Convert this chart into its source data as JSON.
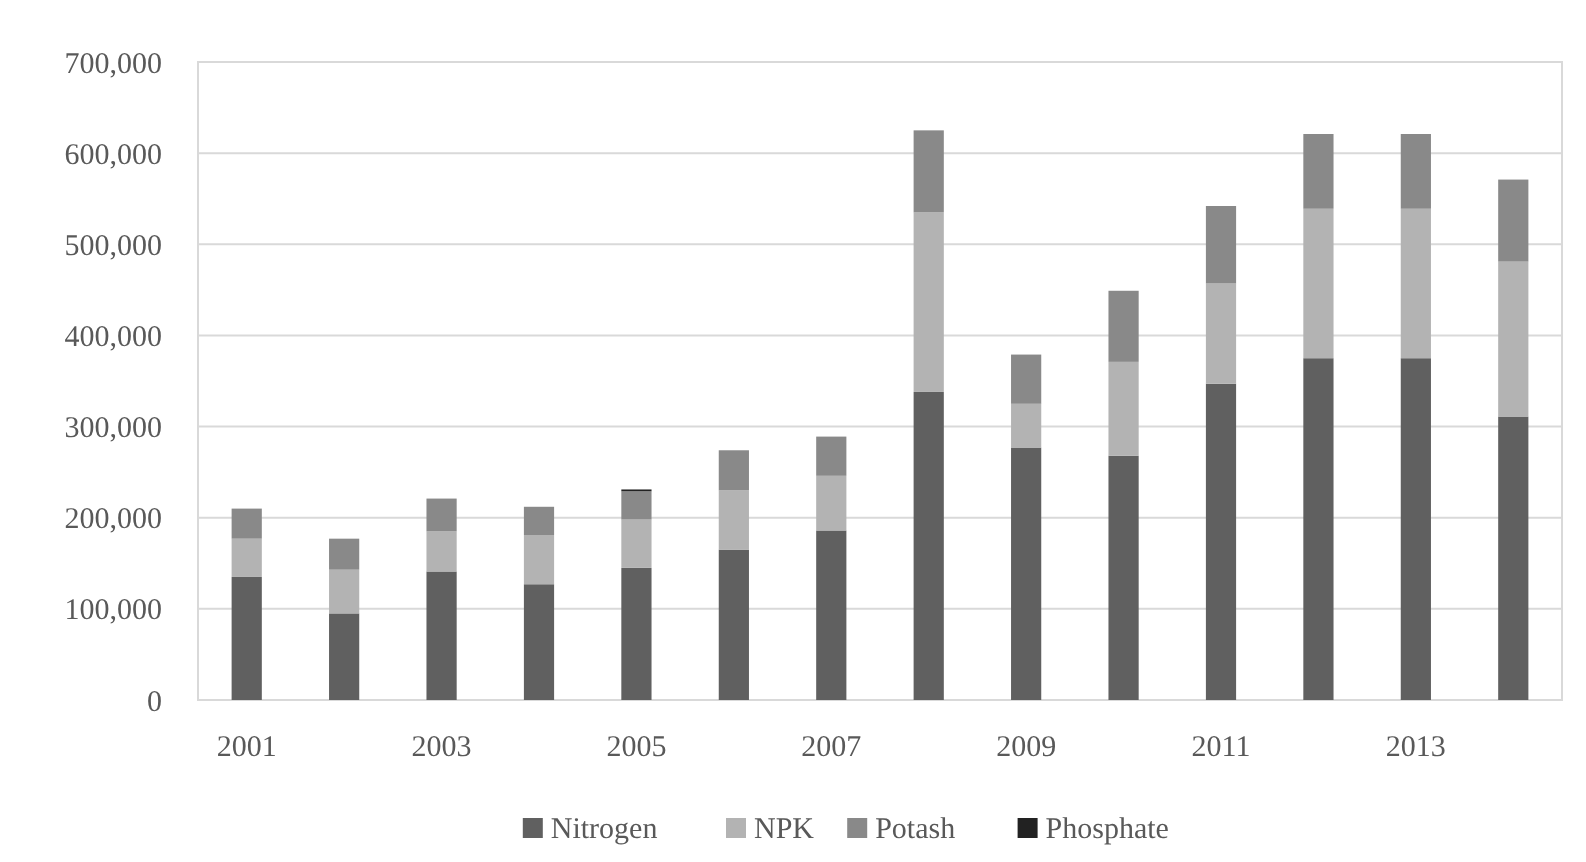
{
  "chart_data": {
    "type": "bar",
    "stacked": true,
    "categories": [
      "2001",
      null,
      "2003",
      null,
      "2005",
      null,
      "2007",
      null,
      "2009",
      null,
      "2011",
      null,
      "2013",
      null
    ],
    "series": [
      {
        "name": "Nitrogen",
        "color": "#606060",
        "values": [
          135000,
          95000,
          141000,
          127000,
          145000,
          165000,
          186000,
          338000,
          277000,
          268000,
          347000,
          375000,
          375000,
          311000
        ]
      },
      {
        "name": "NPK",
        "color": "#b3b3b3",
        "values": [
          42000,
          48000,
          44000,
          54000,
          53000,
          65000,
          60000,
          197000,
          48000,
          103000,
          110000,
          164000,
          164000,
          170000
        ]
      },
      {
        "name": "Potash",
        "color": "#898989",
        "values": [
          33000,
          34000,
          36000,
          31000,
          31000,
          44000,
          43000,
          90000,
          54000,
          78000,
          85000,
          82000,
          82000,
          90000
        ]
      },
      {
        "name": "Phosphate",
        "color": "#222222",
        "values": [
          0,
          0,
          0,
          0,
          2000,
          0,
          0,
          0,
          0,
          0,
          0,
          0,
          0,
          0
        ]
      }
    ],
    "ylim": [
      0,
      700000
    ],
    "yticks": [
      {
        "value": 0,
        "label": "0"
      },
      {
        "value": 100000,
        "label": "100,000"
      },
      {
        "value": 200000,
        "label": "200,000"
      },
      {
        "value": 300000,
        "label": "300,000"
      },
      {
        "value": 400000,
        "label": "400,000"
      },
      {
        "value": 500000,
        "label": "500,000"
      },
      {
        "value": 600000,
        "label": "600,000"
      },
      {
        "value": 700000,
        "label": "700,000"
      }
    ],
    "grid": "y",
    "legend": "bottom"
  }
}
